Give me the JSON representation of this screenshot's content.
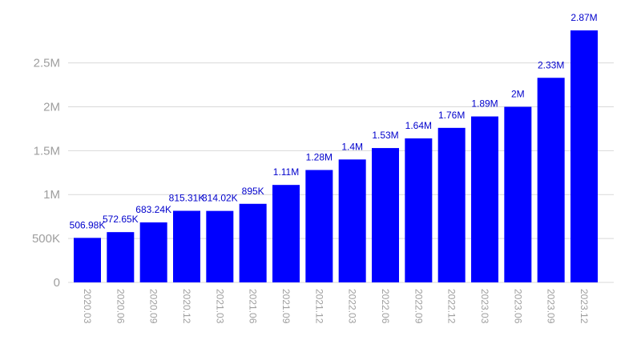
{
  "chart_data": {
    "type": "bar",
    "title": "",
    "xlabel": "",
    "ylabel": "",
    "categories": [
      "2020.03",
      "2020.06",
      "2020.09",
      "2020.12",
      "2021.03",
      "2021.06",
      "2021.09",
      "2021.12",
      "2022.03",
      "2022.06",
      "2022.09",
      "2022.12",
      "2023.03",
      "2023.06",
      "2023.09",
      "2023.12"
    ],
    "values": [
      506980,
      572650,
      683240,
      815310,
      814020,
      895000,
      1110000,
      1280000,
      1400000,
      1530000,
      1640000,
      1760000,
      1890000,
      2000000,
      2330000,
      2870000
    ],
    "data_labels": [
      "506.98K",
      "572.65K",
      "683.24K",
      "815.31K",
      "814.02K",
      "895K",
      "1.11M",
      "1.28M",
      "1.4M",
      "1.53M",
      "1.64M",
      "1.76M",
      "1.89M",
      "2M",
      "2.33M",
      "2.87M"
    ],
    "ylim": [
      0,
      2870000
    ],
    "yticks": [
      0,
      500000,
      1000000,
      1500000,
      2000000,
      2500000
    ],
    "ytick_labels": [
      "0",
      "500K",
      "1M",
      "1.5M",
      "2M",
      "2.5M"
    ],
    "grid": true,
    "bar_color": "#0000ff",
    "label_color": "#0000cc",
    "tick_color": "#9e9e9e",
    "grid_color": "#d9d9d9"
  }
}
